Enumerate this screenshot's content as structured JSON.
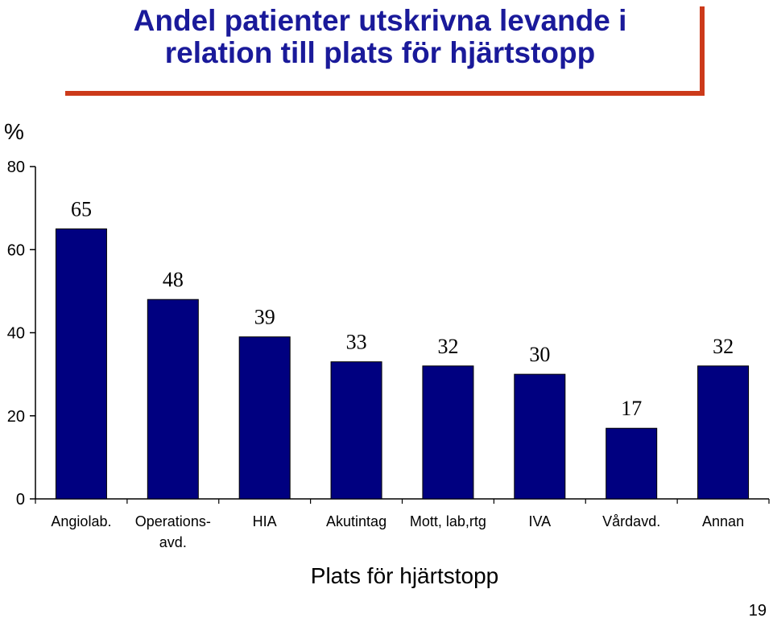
{
  "chart_data": {
    "type": "bar",
    "title": "Andel patienter utskrivna levande i\nrelation till plats för hjärtstopp",
    "ylabel": "%",
    "xlabel": "Plats för hjärtstopp",
    "categories": [
      "Angiolab.",
      "Operations-\navd.",
      "HIA",
      "Akutintag",
      "Mott, lab,rtg",
      "IVA",
      "Vårdavd.",
      "Annan"
    ],
    "values": [
      65,
      48,
      39,
      33,
      32,
      30,
      17,
      32
    ],
    "data_labels": [
      "65",
      "48",
      "39",
      "33",
      "32",
      "30",
      "17",
      "32"
    ],
    "yticks": [
      0,
      20,
      40,
      60,
      80
    ],
    "ylim": [
      0,
      80
    ],
    "grid": false,
    "bar_color": "#000080",
    "title_color": "#1a1a9a",
    "title_shadow_color": "#cc3a1a"
  },
  "page_number": "19"
}
